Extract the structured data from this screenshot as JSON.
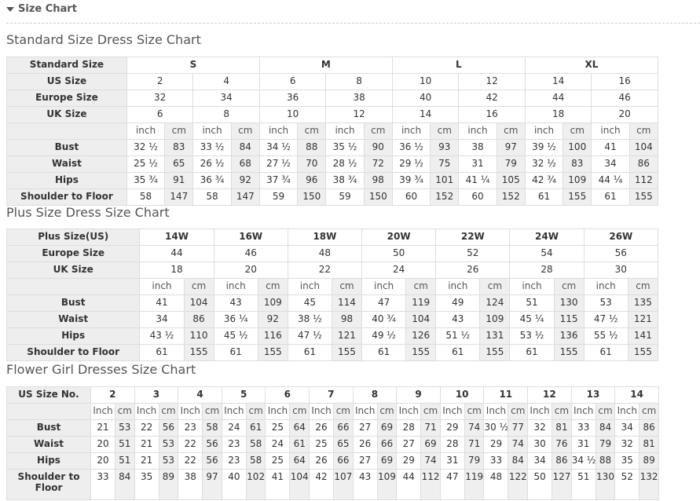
{
  "section": {
    "label": "Size Chart",
    "icon": "triangle-down-icon"
  },
  "tables": {
    "standard": {
      "title": "Standard Size Dress Size Chart",
      "size_header": {
        "label": "Standard Size",
        "values": [
          "S",
          "M",
          "L",
          "XL"
        ]
      },
      "spanned_rows": [
        {
          "label": "US Size",
          "values": [
            "2",
            "4",
            "6",
            "8",
            "10",
            "12",
            "14",
            "16"
          ]
        },
        {
          "label": "Europe Size",
          "values": [
            "32",
            "34",
            "36",
            "38",
            "40",
            "42",
            "44",
            "46"
          ]
        },
        {
          "label": "UK Size",
          "values": [
            "6",
            "8",
            "10",
            "12",
            "14",
            "16",
            "18",
            "20"
          ]
        }
      ],
      "units": [
        "inch",
        "cm"
      ],
      "measurements": [
        {
          "label": "Bust",
          "values": [
            "32 ½",
            "83",
            "33 ½",
            "84",
            "34 ½",
            "88",
            "35 ½",
            "90",
            "36 ½",
            "93",
            "38",
            "97",
            "39 ½",
            "100",
            "41",
            "104"
          ]
        },
        {
          "label": "Waist",
          "values": [
            "25 ½",
            "65",
            "26 ½",
            "68",
            "27 ½",
            "70",
            "28 ½",
            "72",
            "29 ½",
            "75",
            "31",
            "79",
            "32 ½",
            "83",
            "34",
            "86"
          ]
        },
        {
          "label": "Hips",
          "values": [
            "35 ¾",
            "91",
            "36 ¾",
            "92",
            "37 ¾",
            "96",
            "38 ¾",
            "98",
            "39 ¾",
            "101",
            "41 ¼",
            "105",
            "42 ¾",
            "109",
            "44 ¼",
            "112"
          ]
        },
        {
          "label": "Shoulder to Floor",
          "values": [
            "58",
            "147",
            "58",
            "147",
            "59",
            "150",
            "59",
            "150",
            "60",
            "152",
            "60",
            "152",
            "61",
            "155",
            "61",
            "155"
          ]
        }
      ]
    },
    "plus": {
      "title": "Plus Size Dress Size Chart",
      "size_header": {
        "label": "Plus Size(US)",
        "values": [
          "14W",
          "16W",
          "18W",
          "20W",
          "22W",
          "24W",
          "26W"
        ]
      },
      "spanned_rows": [
        {
          "label": "Europe Size",
          "values": [
            "44",
            "46",
            "48",
            "50",
            "52",
            "54",
            "56"
          ]
        },
        {
          "label": "UK Size",
          "values": [
            "18",
            "20",
            "22",
            "24",
            "26",
            "28",
            "30"
          ]
        }
      ],
      "units": [
        "inch",
        "cm"
      ],
      "measurements": [
        {
          "label": "Bust",
          "values": [
            "41",
            "104",
            "43",
            "109",
            "45",
            "114",
            "47",
            "119",
            "49",
            "124",
            "51",
            "130",
            "53",
            "135"
          ]
        },
        {
          "label": "Waist",
          "values": [
            "34",
            "86",
            "36 ¼",
            "92",
            "38 ½",
            "98",
            "40 ¾",
            "104",
            "43",
            "109",
            "45 ¼",
            "115",
            "47 ½",
            "121"
          ]
        },
        {
          "label": "Hips",
          "values": [
            "43 ½",
            "110",
            "45 ½",
            "116",
            "47 ½",
            "121",
            "49 ½",
            "126",
            "51 ½",
            "131",
            "53 ½",
            "136",
            "55 ½",
            "141"
          ]
        },
        {
          "label": "Shoulder to Floor",
          "values": [
            "61",
            "155",
            "61",
            "155",
            "61",
            "155",
            "61",
            "155",
            "61",
            "155",
            "61",
            "155",
            "61",
            "155"
          ]
        }
      ]
    },
    "flower": {
      "title": "Flower Girl Dresses Size Chart",
      "size_header": {
        "label": "US Size No.",
        "values": [
          "2",
          "3",
          "4",
          "5",
          "6",
          "7",
          "8",
          "9",
          "10",
          "11",
          "12",
          "13",
          "14"
        ]
      },
      "spanned_rows": [],
      "units": [
        "Inch",
        "cm"
      ],
      "measurements": [
        {
          "label": "Bust",
          "values": [
            "21",
            "53",
            "22",
            "56",
            "23",
            "58",
            "24",
            "61",
            "25",
            "64",
            "26",
            "66",
            "27",
            "69",
            "28",
            "71",
            "29",
            "74",
            "30 ½",
            "77",
            "32",
            "81",
            "33",
            "84",
            "34",
            "86"
          ]
        },
        {
          "label": "Waist",
          "values": [
            "20",
            "51",
            "21",
            "53",
            "22",
            "56",
            "23",
            "58",
            "24",
            "61",
            "25",
            "65",
            "26",
            "66",
            "27",
            "69",
            "28",
            "71",
            "29",
            "74",
            "30",
            "76",
            "31",
            "79",
            "32",
            "81"
          ]
        },
        {
          "label": "Hips",
          "values": [
            "20",
            "51",
            "21",
            "53",
            "22",
            "56",
            "23",
            "58",
            "25",
            "64",
            "26",
            "66",
            "27",
            "69",
            "29",
            "74",
            "31",
            "79",
            "33",
            "84",
            "34",
            "86",
            "34 ½",
            "88",
            "35",
            "89"
          ]
        },
        {
          "label": "Shoulder to Floor",
          "values": [
            "33",
            "84",
            "35",
            "89",
            "38",
            "97",
            "40",
            "102",
            "41",
            "104",
            "42",
            "107",
            "43",
            "109",
            "44",
            "112",
            "47",
            "119",
            "48",
            "122",
            "50",
            "127",
            "51",
            "130",
            "52",
            "132"
          ]
        }
      ]
    }
  }
}
